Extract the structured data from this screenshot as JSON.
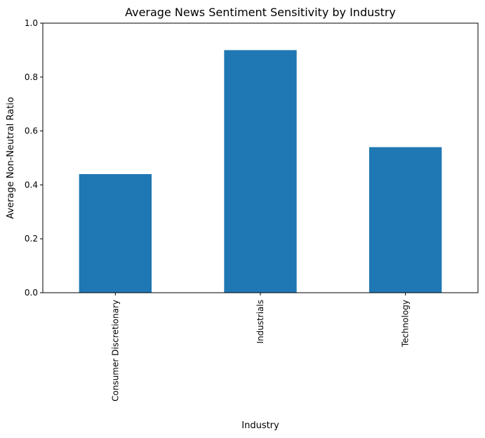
{
  "chart_data": {
    "type": "bar",
    "title": "Average News Sentiment Sensitivity by Industry",
    "xlabel": "Industry",
    "ylabel": "Average Non-Neutral Ratio",
    "categories": [
      "Consumer Discretionary",
      "Industrials",
      "Technology"
    ],
    "values": [
      0.44,
      0.9,
      0.54
    ],
    "ylim": [
      0,
      1
    ],
    "yticks": [
      "0.0",
      "0.2",
      "0.4",
      "0.6",
      "0.8",
      "1.0"
    ],
    "grid": false,
    "legend": "none",
    "bar_color": "#1f77b4"
  }
}
